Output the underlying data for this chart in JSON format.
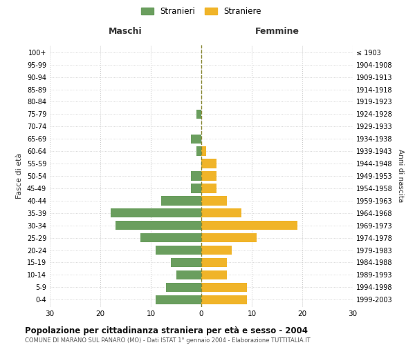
{
  "age_groups": [
    "0-4",
    "5-9",
    "10-14",
    "15-19",
    "20-24",
    "25-29",
    "30-34",
    "35-39",
    "40-44",
    "45-49",
    "50-54",
    "55-59",
    "60-64",
    "65-69",
    "70-74",
    "75-79",
    "80-84",
    "85-89",
    "90-94",
    "95-99",
    "100+"
  ],
  "birth_years": [
    "1999-2003",
    "1994-1998",
    "1989-1993",
    "1984-1988",
    "1979-1983",
    "1974-1978",
    "1969-1973",
    "1964-1968",
    "1959-1963",
    "1954-1958",
    "1949-1953",
    "1944-1948",
    "1939-1943",
    "1934-1938",
    "1929-1933",
    "1924-1928",
    "1919-1923",
    "1914-1918",
    "1909-1913",
    "1904-1908",
    "≤ 1903"
  ],
  "maschi": [
    9,
    7,
    5,
    6,
    9,
    12,
    17,
    18,
    8,
    2,
    2,
    0,
    1,
    2,
    0,
    1,
    0,
    0,
    0,
    0,
    0
  ],
  "femmine": [
    9,
    9,
    5,
    5,
    6,
    11,
    19,
    8,
    5,
    3,
    3,
    3,
    1,
    0,
    0,
    0,
    0,
    0,
    0,
    0,
    0
  ],
  "color_maschi": "#6a9e5e",
  "color_femmine": "#f0b429",
  "title": "Popolazione per cittadinanza straniera per età e sesso - 2004",
  "subtitle": "COMUNE DI MARANO SUL PANARO (MO) - Dati ISTAT 1° gennaio 2004 - Elaborazione TUTTITALIA.IT",
  "xlabel_left": "Maschi",
  "xlabel_right": "Femmine",
  "ylabel_left": "Fasce di età",
  "ylabel_right": "Anni di nascita",
  "legend_maschi": "Stranieri",
  "legend_femmine": "Straniere",
  "xlim": 30,
  "background_color": "#ffffff",
  "grid_color": "#cccccc"
}
